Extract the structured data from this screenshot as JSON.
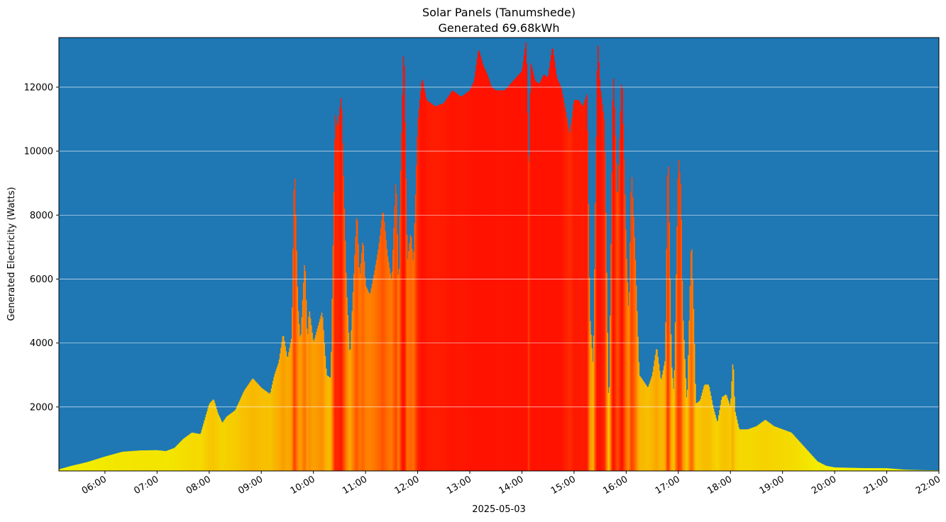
{
  "chart_data": {
    "type": "bar",
    "title": "Solar Panels (Tanumshede)",
    "subtitle": "Generated 69.68kWh",
    "xlabel": "2025-05-03",
    "ylabel": "Generated Electricity (Watts)",
    "xlim": [
      "05:07",
      "22:00"
    ],
    "ylim": [
      0,
      13550
    ],
    "grid": "horizontal",
    "background_color": "#1f77b4",
    "color_low": "#f2f200",
    "color_mid": "#ff7a00",
    "color_high": "#ff1200",
    "yticks": [
      "2000",
      "4000",
      "6000",
      "8000",
      "10000",
      "12000"
    ],
    "xticks": [
      "06:00",
      "07:00",
      "08:00",
      "09:00",
      "10:00",
      "11:00",
      "12:00",
      "13:00",
      "14:00",
      "15:00",
      "16:00",
      "17:00",
      "18:00",
      "19:00",
      "20:00",
      "21:00",
      "22:00"
    ],
    "series": [
      {
        "points": [
          [
            "05:07",
            50
          ],
          [
            "05:20",
            150
          ],
          [
            "05:40",
            280
          ],
          [
            "06:00",
            450
          ],
          [
            "06:20",
            600
          ],
          [
            "06:40",
            640
          ],
          [
            "07:00",
            650
          ],
          [
            "07:10",
            620
          ],
          [
            "07:20",
            720
          ],
          [
            "07:30",
            1000
          ],
          [
            "07:40",
            1200
          ],
          [
            "07:50",
            1150
          ],
          [
            "08:00",
            2100
          ],
          [
            "08:05",
            2250
          ],
          [
            "08:10",
            1800
          ],
          [
            "08:15",
            1500
          ],
          [
            "08:20",
            1700
          ],
          [
            "08:30",
            1900
          ],
          [
            "08:40",
            2500
          ],
          [
            "08:50",
            2900
          ],
          [
            "09:00",
            2600
          ],
          [
            "09:10",
            2400
          ],
          [
            "09:15",
            3000
          ],
          [
            "09:20",
            3400
          ],
          [
            "09:25",
            4300
          ],
          [
            "09:30",
            3500
          ],
          [
            "09:35",
            4200
          ],
          [
            "09:38",
            9700
          ],
          [
            "09:42",
            5200
          ],
          [
            "09:45",
            4000
          ],
          [
            "09:50",
            6700
          ],
          [
            "09:53",
            4000
          ],
          [
            "09:55",
            5100
          ],
          [
            "10:00",
            4000
          ],
          [
            "10:05",
            4500
          ],
          [
            "10:10",
            5000
          ],
          [
            "10:15",
            3000
          ],
          [
            "10:20",
            2900
          ],
          [
            "10:25",
            11200
          ],
          [
            "10:28",
            10700
          ],
          [
            "10:32",
            11800
          ],
          [
            "10:35",
            8700
          ],
          [
            "10:38",
            5700
          ],
          [
            "10:42",
            3500
          ],
          [
            "10:45",
            5300
          ],
          [
            "10:50",
            8200
          ],
          [
            "10:53",
            6000
          ],
          [
            "10:57",
            7300
          ],
          [
            "11:00",
            5800
          ],
          [
            "11:05",
            5500
          ],
          [
            "11:10",
            6200
          ],
          [
            "11:15",
            7000
          ],
          [
            "11:20",
            8200
          ],
          [
            "11:25",
            6800
          ],
          [
            "11:30",
            5900
          ],
          [
            "11:35",
            9300
          ],
          [
            "11:38",
            5500
          ],
          [
            "11:40",
            8800
          ],
          [
            "11:44",
            13550
          ],
          [
            "11:48",
            6500
          ],
          [
            "11:52",
            7500
          ],
          [
            "11:55",
            6400
          ],
          [
            "12:00",
            10900
          ],
          [
            "12:05",
            12300
          ],
          [
            "12:10",
            11600
          ],
          [
            "12:20",
            11400
          ],
          [
            "12:30",
            11500
          ],
          [
            "12:40",
            11900
          ],
          [
            "12:50",
            11700
          ],
          [
            "13:00",
            11900
          ],
          [
            "13:05",
            12200
          ],
          [
            "13:10",
            13200
          ],
          [
            "13:15",
            12700
          ],
          [
            "13:20",
            12400
          ],
          [
            "13:25",
            12000
          ],
          [
            "13:30",
            11900
          ],
          [
            "13:40",
            11900
          ],
          [
            "13:50",
            12200
          ],
          [
            "14:00",
            12500
          ],
          [
            "14:05",
            13500
          ],
          [
            "14:08",
            8900
          ],
          [
            "14:10",
            12800
          ],
          [
            "14:15",
            12200
          ],
          [
            "14:20",
            12100
          ],
          [
            "14:25",
            12400
          ],
          [
            "14:30",
            12300
          ],
          [
            "14:35",
            13300
          ],
          [
            "14:40",
            12300
          ],
          [
            "14:45",
            12000
          ],
          [
            "14:50",
            11300
          ],
          [
            "14:55",
            10500
          ],
          [
            "15:00",
            11600
          ],
          [
            "15:05",
            11600
          ],
          [
            "15:10",
            11400
          ],
          [
            "15:15",
            11800
          ],
          [
            "15:18",
            4900
          ],
          [
            "15:22",
            3200
          ],
          [
            "15:27",
            13550
          ],
          [
            "15:30",
            12000
          ],
          [
            "15:35",
            10900
          ],
          [
            "15:40",
            1500
          ],
          [
            "15:45",
            12700
          ],
          [
            "15:50",
            8300
          ],
          [
            "15:55",
            12500
          ],
          [
            "16:00",
            7000
          ],
          [
            "16:03",
            4800
          ],
          [
            "16:06",
            9500
          ],
          [
            "16:10",
            7000
          ],
          [
            "16:15",
            3000
          ],
          [
            "16:20",
            2800
          ],
          [
            "16:25",
            2600
          ],
          [
            "16:30",
            3000
          ],
          [
            "16:35",
            3900
          ],
          [
            "16:40",
            2800
          ],
          [
            "16:45",
            3500
          ],
          [
            "16:48",
            10400
          ],
          [
            "16:52",
            3400
          ],
          [
            "16:55",
            2400
          ],
          [
            "17:00",
            9900
          ],
          [
            "17:03",
            8800
          ],
          [
            "17:05",
            5000
          ],
          [
            "17:10",
            2000
          ],
          [
            "17:15",
            7400
          ],
          [
            "17:18",
            4600
          ],
          [
            "17:20",
            2100
          ],
          [
            "17:25",
            2200
          ],
          [
            "17:30",
            2700
          ],
          [
            "17:35",
            2700
          ],
          [
            "17:40",
            2000
          ],
          [
            "17:45",
            1500
          ],
          [
            "17:50",
            2300
          ],
          [
            "17:55",
            2400
          ],
          [
            "18:00",
            2000
          ],
          [
            "18:03",
            3600
          ],
          [
            "18:05",
            1900
          ],
          [
            "18:10",
            1300
          ],
          [
            "18:20",
            1300
          ],
          [
            "18:30",
            1400
          ],
          [
            "18:40",
            1600
          ],
          [
            "18:50",
            1400
          ],
          [
            "19:00",
            1300
          ],
          [
            "19:10",
            1200
          ],
          [
            "19:20",
            900
          ],
          [
            "19:30",
            600
          ],
          [
            "19:40",
            300
          ],
          [
            "19:50",
            160
          ],
          [
            "20:00",
            110
          ],
          [
            "20:30",
            90
          ],
          [
            "21:00",
            85
          ],
          [
            "21:20",
            40
          ],
          [
            "21:40",
            25
          ],
          [
            "22:00",
            20
          ]
        ]
      }
    ]
  }
}
